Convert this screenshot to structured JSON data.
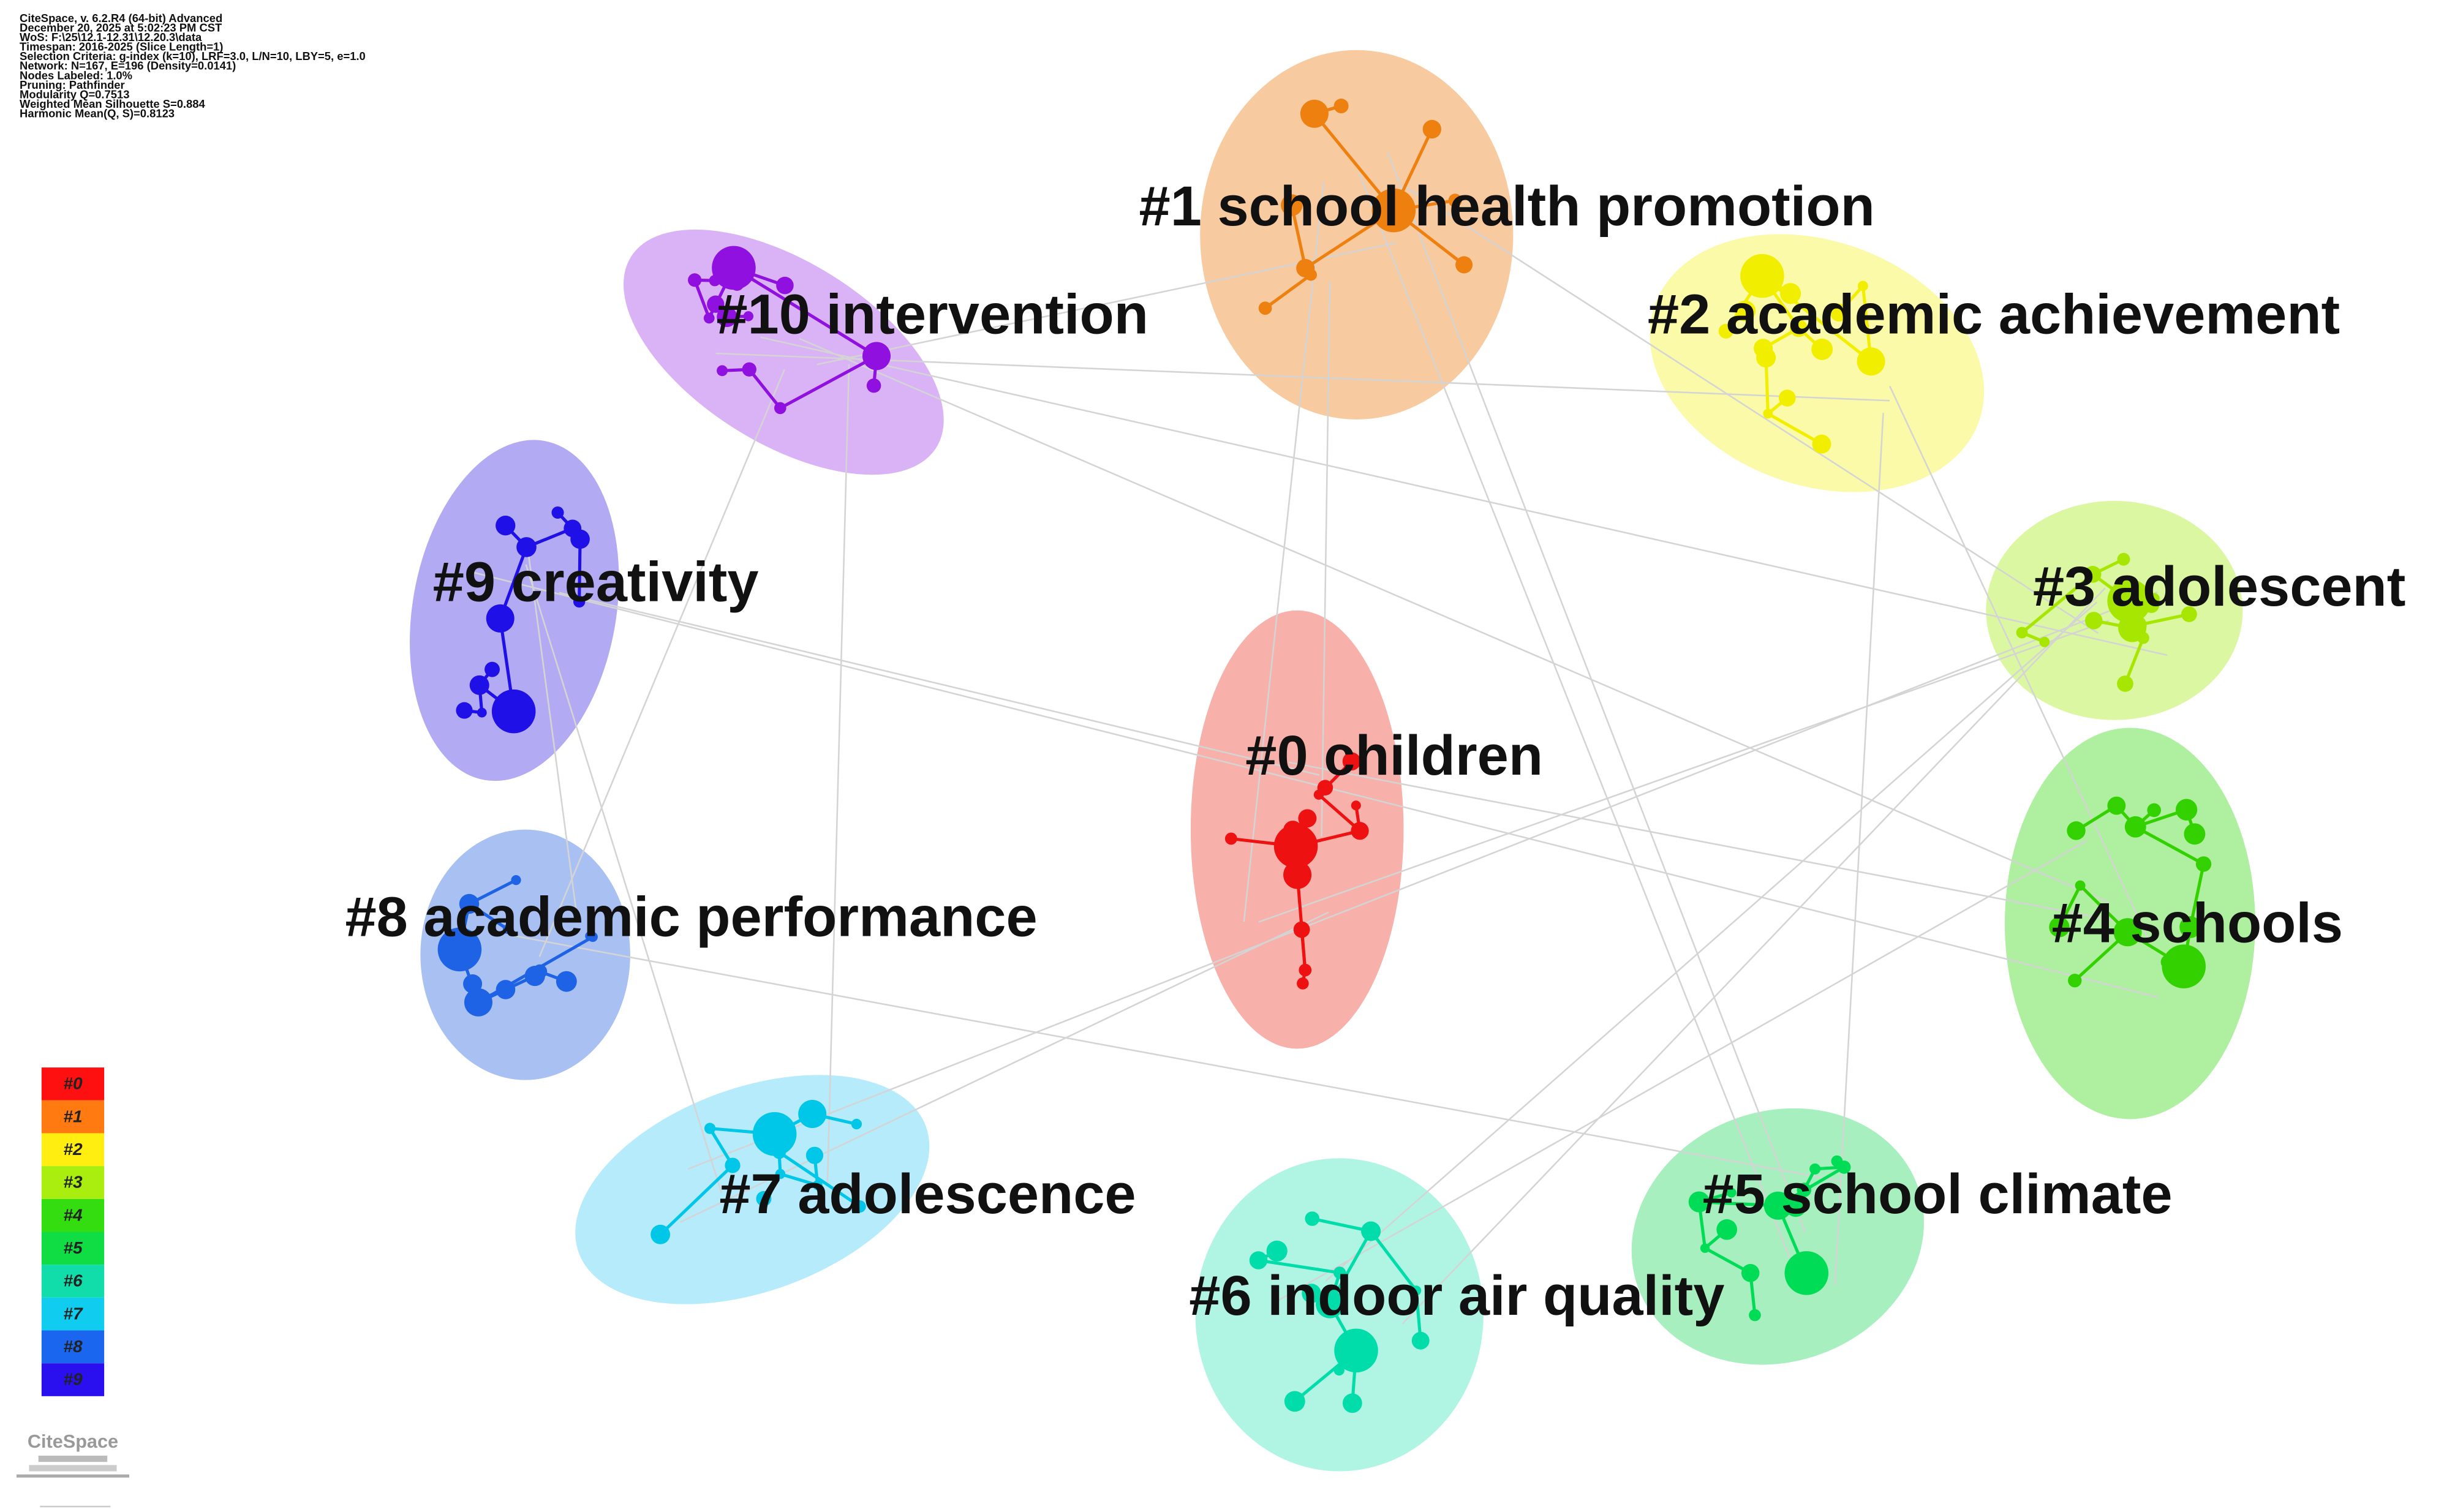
{
  "header": {
    "lines": [
      "CiteSpace, v. 6.2.R4 (64-bit) Advanced",
      "December 20, 2025 at 5:02:23 PM CST",
      "WoS: F:\\25\\12.1-12.31\\12.20.3\\data",
      "Timespan: 2016-2025 (Slice Length=1)",
      "Selection Criteria: g-index (k=10), LRF=3.0, L/N=10, LBY=5, e=1.0",
      "Network: N=167, E=196 (Density=0.0141)",
      "Nodes Labeled: 1.0%",
      "Pruning: Pathfinder",
      "Modularity Q=0.7513",
      "Weighted Mean Silhouette S=0.884",
      "Harmonic Mean(Q, S)=0.8123"
    ]
  },
  "clusters": [
    {
      "label": "#0 children",
      "color": "#ee1111",
      "halo": "#f7b0aa"
    },
    {
      "label": "#1 school health promotion",
      "color": "#ee8010",
      "halo": "#f8caa0"
    },
    {
      "label": "#2 academic achievement",
      "color": "#f2ee00",
      "halo": "#fbfaa8"
    },
    {
      "label": "#3 adolescent",
      "color": "#a6e600",
      "halo": "#dcf7a2"
    },
    {
      "label": "#4 schools",
      "color": "#33d100",
      "halo": "#aef0a0"
    },
    {
      "label": "#5 school climate",
      "color": "#00dc55",
      "halo": "#a8efbf"
    },
    {
      "label": "#6 indoor air quality",
      "color": "#00dcaa",
      "halo": "#b0f5e3"
    },
    {
      "label": "#7 adolescence",
      "color": "#00c6e8",
      "halo": "#b5ebfa"
    },
    {
      "label": "#8 academic performance",
      "color": "#1e63e6",
      "halo": "#a9c0f3"
    },
    {
      "label": "#9 creativity",
      "color": "#1e10e6",
      "halo": "#b2aaf3"
    },
    {
      "label": "#10 intervention",
      "color": "#9010e0",
      "halo": "#dab2f6"
    }
  ],
  "legend": [
    {
      "label": "#0",
      "color": "#ff1010"
    },
    {
      "label": "#1",
      "color": "#ff7a10"
    },
    {
      "label": "#2",
      "color": "#ffee10"
    },
    {
      "label": "#3",
      "color": "#aaee10"
    },
    {
      "label": "#4",
      "color": "#33dd10"
    },
    {
      "label": "#5",
      "color": "#10dd44"
    },
    {
      "label": "#6",
      "color": "#10ddaa"
    },
    {
      "label": "#7",
      "color": "#10ccee"
    },
    {
      "label": "#8",
      "color": "#1a66ee"
    },
    {
      "label": "#9",
      "color": "#2a10ee"
    }
  ],
  "logo": "CiteSpace"
}
